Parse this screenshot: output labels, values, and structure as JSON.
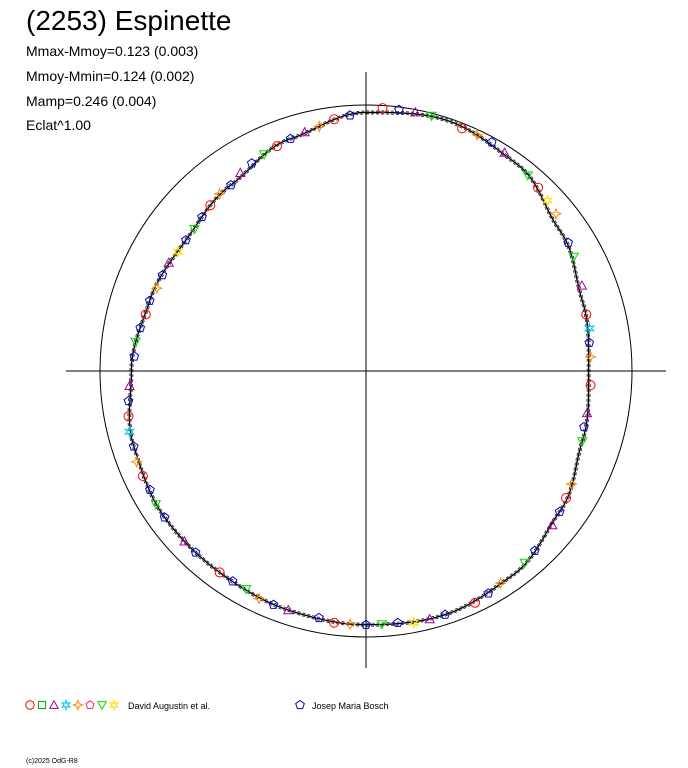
{
  "header": {
    "title": "(2253) Espinette",
    "stats": [
      "Mmax-Mmoy=0.123 (0.003)",
      "Mmoy-Mmin=0.124 (0.002)",
      "Mamp=0.246 (0.004)",
      "Eclat^1.00"
    ]
  },
  "legend": {
    "groups": [
      {
        "label": "David Augustin et al.",
        "markers": [
          "circle",
          "square",
          "triangle",
          "star6",
          "star4",
          "pentagon",
          "triangle-down",
          "star6"
        ],
        "colors": [
          "#ff0000",
          "#00aa00",
          "#a000a0",
          "#00c8ff",
          "#ff8800",
          "#ff2080",
          "#00dd00",
          "#ffe000"
        ]
      },
      {
        "label": "Josep Maria Bosch",
        "markers": [
          "pentagon"
        ],
        "colors": [
          "#0000cc"
        ]
      }
    ]
  },
  "copyright": "(c)2025 OdG-R8",
  "chart_data": {
    "type": "scatter",
    "projection": "polar",
    "description_units": "radius = relative flux, angle = rotational phase (0 to 1, clockwise from top)",
    "reference_circle_radius": 1.0,
    "axes": {
      "xlim": [
        -1.1,
        1.1
      ],
      "ylim": [
        -1.1,
        1.1
      ],
      "crosshair": true,
      "grid": false
    },
    "fit_curve": {
      "phase": [
        0.0,
        0.05,
        0.1,
        0.15,
        0.2,
        0.25,
        0.3,
        0.35,
        0.4,
        0.45,
        0.5,
        0.55,
        0.6,
        0.65,
        0.7,
        0.75,
        0.8,
        0.85,
        0.9,
        0.95,
        1.0
      ],
      "radius": [
        1.08,
        1.1,
        1.07,
        1.0,
        0.95,
        0.93,
        0.95,
        1.0,
        1.05,
        1.07,
        1.06,
        1.05,
        1.04,
        1.04,
        1.02,
        0.98,
        0.95,
        0.93,
        0.96,
        1.02,
        1.08
      ]
    },
    "series": [
      {
        "name": "David Augustin et al.",
        "marker": "circle",
        "color": "#ff0000",
        "points": [
          [
            0.01,
            1.1
          ],
          [
            0.06,
            1.09
          ],
          [
            0.12,
            1.05
          ],
          [
            0.21,
            0.95
          ],
          [
            0.26,
            0.94
          ],
          [
            0.34,
            0.99
          ],
          [
            0.43,
            1.07
          ],
          [
            0.52,
            1.06
          ],
          [
            0.6,
            1.04
          ],
          [
            0.68,
            1.03
          ],
          [
            0.72,
            1.01
          ],
          [
            0.79,
            0.95
          ],
          [
            0.88,
            0.95
          ],
          [
            0.94,
            1.01
          ],
          [
            0.98,
            1.06
          ]
        ]
      },
      {
        "name": "David Augustin et al.",
        "marker": "triangle",
        "color": "#a000a0",
        "points": [
          [
            0.03,
            1.1
          ],
          [
            0.09,
            1.08
          ],
          [
            0.19,
            0.97
          ],
          [
            0.28,
            0.94
          ],
          [
            0.36,
            1.01
          ],
          [
            0.46,
            1.07
          ],
          [
            0.55,
            1.05
          ],
          [
            0.63,
            1.04
          ],
          [
            0.74,
            0.99
          ],
          [
            0.83,
            0.94
          ],
          [
            0.91,
            0.98
          ],
          [
            0.96,
            1.03
          ]
        ]
      },
      {
        "name": "David Augustin et al.",
        "marker": "triangle-down",
        "color": "#00dd00",
        "points": [
          [
            0.04,
            1.1
          ],
          [
            0.11,
            1.06
          ],
          [
            0.17,
            0.99
          ],
          [
            0.3,
            0.95
          ],
          [
            0.39,
            1.04
          ],
          [
            0.49,
            1.06
          ],
          [
            0.58,
            1.04
          ],
          [
            0.66,
            1.04
          ],
          [
            0.77,
            0.97
          ],
          [
            0.86,
            0.93
          ],
          [
            0.93,
            1.0
          ]
        ]
      },
      {
        "name": "David Augustin et al.",
        "marker": "star4",
        "color": "#ff8800",
        "points": [
          [
            0.07,
            1.09
          ],
          [
            0.14,
            1.03
          ],
          [
            0.24,
            0.94
          ],
          [
            0.33,
            0.98
          ],
          [
            0.41,
            1.05
          ],
          [
            0.51,
            1.06
          ],
          [
            0.57,
            1.05
          ],
          [
            0.69,
            1.03
          ],
          [
            0.81,
            0.94
          ],
          [
            0.89,
            0.96
          ],
          [
            0.97,
            1.04
          ]
        ]
      },
      {
        "name": "David Augustin et al.",
        "marker": "star6",
        "color": "#00c8ff",
        "points": [
          [
            0.22,
            0.95
          ],
          [
            0.71,
            1.02
          ]
        ]
      },
      {
        "name": "David Augustin et al.",
        "marker": "star6",
        "color": "#ffe000",
        "points": [
          [
            0.13,
            1.04
          ],
          [
            0.47,
            1.07
          ],
          [
            0.84,
            0.93
          ]
        ]
      },
      {
        "name": "Josep Maria Bosch",
        "marker": "pentagon",
        "color": "#0000cc",
        "points": [
          [
            0.02,
            1.1
          ],
          [
            0.08,
            1.09
          ],
          [
            0.16,
            1.0
          ],
          [
            0.23,
            0.94
          ],
          [
            0.29,
            0.94
          ],
          [
            0.35,
            1.0
          ],
          [
            0.38,
            1.03
          ],
          [
            0.42,
            1.06
          ],
          [
            0.45,
            1.07
          ],
          [
            0.48,
            1.06
          ],
          [
            0.5,
            1.06
          ],
          [
            0.53,
            1.05
          ],
          [
            0.56,
            1.05
          ],
          [
            0.59,
            1.04
          ],
          [
            0.62,
            1.04
          ],
          [
            0.65,
            1.04
          ],
          [
            0.67,
            1.03
          ],
          [
            0.7,
            1.02
          ],
          [
            0.73,
            1.0
          ],
          [
            0.76,
            0.97
          ],
          [
            0.78,
            0.96
          ],
          [
            0.8,
            0.95
          ],
          [
            0.82,
            0.94
          ],
          [
            0.85,
            0.93
          ],
          [
            0.87,
            0.94
          ],
          [
            0.9,
            0.96
          ],
          [
            0.92,
            0.99
          ],
          [
            0.95,
            1.02
          ],
          [
            0.99,
            1.07
          ]
        ]
      }
    ]
  }
}
